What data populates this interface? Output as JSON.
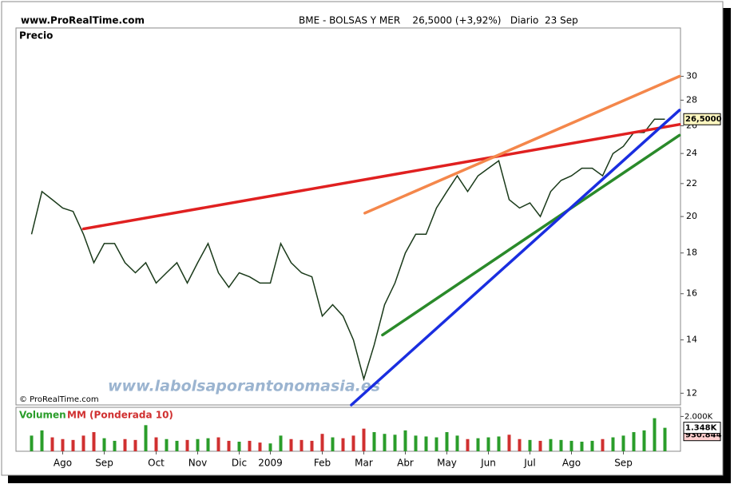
{
  "chart_data": {
    "type": "line",
    "site": "www.ProRealTime.com",
    "title": "BME - BOLSAS Y MER    26,5000 (+3,92%)   Diario  23 Sep",
    "panel_label": "Precio",
    "copyright": "© ProRealTime.com",
    "watermark": "www.labolsaporantonomasia.es",
    "volume_label": "Volumen",
    "volume_ma_name": "MM (Ponderada 10)",
    "log_scale": true,
    "categories": [
      null,
      null,
      null,
      "Ago",
      null,
      null,
      null,
      "Sep",
      null,
      null,
      null,
      null,
      "Oct",
      null,
      null,
      null,
      "Nov",
      null,
      null,
      null,
      "Dic",
      null,
      null,
      "2009",
      null,
      null,
      null,
      null,
      "Feb",
      null,
      null,
      null,
      "Mar",
      null,
      null,
      null,
      "Abr",
      null,
      null,
      null,
      "May",
      null,
      null,
      null,
      "Jun",
      null,
      null,
      null,
      "Jul",
      null,
      null,
      null,
      "Ago",
      null,
      null,
      null,
      null,
      "Sep",
      null,
      null,
      null,
      null
    ],
    "series": [
      {
        "name": "Precio",
        "color": "#1a3a1a",
        "values": [
          19,
          21.5,
          21,
          20.5,
          20.3,
          19,
          17.5,
          18.5,
          18.5,
          17.5,
          17,
          17.5,
          16.5,
          17,
          17.5,
          16.5,
          17.5,
          18.5,
          17,
          16.3,
          17,
          16.8,
          16.5,
          16.5,
          18.5,
          17.5,
          17,
          16.8,
          15,
          15.5,
          15,
          14,
          12.5,
          13.8,
          15.5,
          16.5,
          18,
          19,
          19,
          20.5,
          21.5,
          22.5,
          21.5,
          22.5,
          23,
          23.5,
          21,
          20.5,
          20.8,
          20,
          21.5,
          22.2,
          22.5,
          23,
          23,
          22.5,
          24,
          24.5,
          25.5,
          25.5,
          26.5,
          26.5
        ]
      },
      {
        "name": "Volumen",
        "axis": "volume",
        "values": [
          900000,
          1200000,
          800000,
          700000,
          650000,
          900000,
          1100000,
          750000,
          600000,
          700000,
          650000,
          1500000,
          800000,
          700000,
          600000,
          650000,
          700000,
          750000,
          800000,
          600000,
          550000,
          600000,
          500000,
          450000,
          900000,
          700000,
          650000,
          600000,
          1000000,
          800000,
          750000,
          900000,
          1300000,
          1100000,
          1000000,
          950000,
          1200000,
          900000,
          850000,
          800000,
          1100000,
          900000,
          700000,
          750000,
          800000,
          850000,
          950000,
          700000,
          650000,
          600000,
          700000,
          650000,
          600000,
          550000,
          600000,
          700000,
          800000,
          900000,
          1100000,
          1200000,
          1900000,
          1348000
        ]
      }
    ],
    "up_color": "#2a9d2a",
    "down_color": "#d03030",
    "xlim": [
      -1.5,
      62.5
    ],
    "ylim": [
      11.6,
      34.5
    ],
    "yticks": [
      12,
      14,
      16,
      18,
      20,
      22,
      24,
      26,
      28,
      30
    ],
    "volume_lim": [
      0,
      2524000
    ],
    "volume_ticks": [
      {
        "value": 2000000,
        "label": "2.000K"
      }
    ],
    "last_price": {
      "value": 26.5,
      "label": "26,5000"
    },
    "last_volume": {
      "value": 1348000,
      "label": "1.348K"
    },
    "volume_ma": {
      "value": 930844,
      "label": "930.844"
    },
    "trendlines": [
      {
        "color": "#e02020",
        "x": [
          5,
          62.4
        ],
        "y": [
          19.3,
          26.1
        ]
      },
      {
        "color": "#f4874b",
        "x": [
          32.1,
          62.4
        ],
        "y": [
          20.2,
          30
        ]
      },
      {
        "color": "#2a8a2a",
        "x": [
          33.8,
          62.4
        ],
        "y": [
          14.2,
          25.3
        ]
      },
      {
        "color": "#1a2ee0",
        "x": [
          30.8,
          62.4
        ],
        "y": [
          11.6,
          27.2
        ]
      }
    ]
  }
}
